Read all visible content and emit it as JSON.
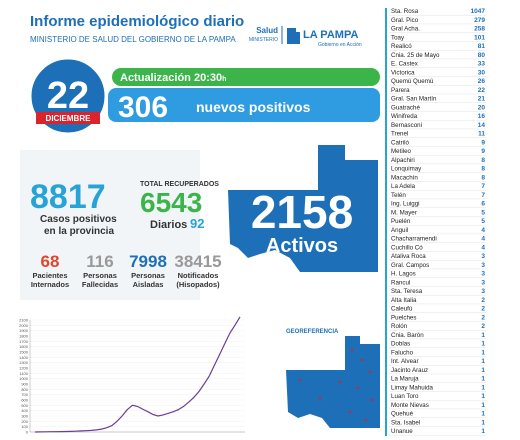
{
  "header": {
    "title": "Informe epidemiológico diario",
    "subtitle": "MINISTERIO DE SALUD DEL GOBIERNO DE LA PAMPA"
  },
  "logo": {
    "salud": "Salud",
    "ministerio": "MINISTERIO",
    "province": "LA PAMPA",
    "slogan": "Gobierno en Acción"
  },
  "date": {
    "day": "22",
    "month": "DICIEMBRE"
  },
  "update": {
    "label": "Actualización 20:30",
    "unit": "h"
  },
  "new_cases": {
    "value": "306",
    "label": "nuevos positivos"
  },
  "total_cases": {
    "value": "8817",
    "label_1": "Casos positivos",
    "label_2": "en la provincia"
  },
  "recovered": {
    "label": "TOTAL RECUPERADOS",
    "value": "6543",
    "daily_label": "Diarios",
    "daily_value": "92"
  },
  "active": {
    "value": "2158",
    "label": "Activos"
  },
  "stats": [
    {
      "value": "68",
      "label_1": "Pacientes",
      "label_2": "Internados"
    },
    {
      "value": "116",
      "label_1": "Personas",
      "label_2": "Fallecidas"
    },
    {
      "value": "7998",
      "label_1": "Personas",
      "label_2": "Aisladas"
    },
    {
      "value": "38415",
      "label_1": "Notificados",
      "label_2": "(Hisopados)"
    }
  ],
  "georef": "GEOREFERENCIA",
  "chart": {
    "yticks": [
      0,
      100,
      200,
      300,
      400,
      500,
      600,
      700,
      800,
      900,
      1000,
      1100,
      1200,
      1300,
      1400,
      1500,
      1600,
      1700,
      1800,
      1900,
      2000,
      2100
    ],
    "values": [
      0,
      2,
      3,
      5,
      5,
      8,
      10,
      12,
      15,
      20,
      25,
      30,
      40,
      55,
      80,
      120,
      200,
      300,
      420,
      500,
      480,
      430,
      380,
      330,
      300,
      320,
      350,
      380,
      420,
      480,
      560,
      650,
      760,
      900,
      1050,
      1250,
      1450,
      1650,
      1850,
      2000,
      2158
    ]
  },
  "localities": [
    [
      "Sta. Rosa",
      "1047"
    ],
    [
      "Gral. Pico",
      "279"
    ],
    [
      "Gral Acha.",
      "258"
    ],
    [
      "Toay",
      "101"
    ],
    [
      "Realicó",
      "81"
    ],
    [
      "Cnia. 25 de Mayo",
      "80"
    ],
    [
      "E. Castex",
      "33"
    ],
    [
      "Victorica",
      "30"
    ],
    [
      "Quemú Quemú",
      "26"
    ],
    [
      "Parera",
      "22"
    ],
    [
      "Gral. San Martín",
      "21"
    ],
    [
      "Guatraché",
      "20"
    ],
    [
      "Winifreda",
      "16"
    ],
    [
      "Bernasconi",
      "14"
    ],
    [
      "Trenel",
      "11"
    ],
    [
      "Catriló",
      "9"
    ],
    [
      "Metileo",
      "9"
    ],
    [
      "Alpachiri",
      "8"
    ],
    [
      "Lonquimay",
      "8"
    ],
    [
      "Macachín",
      "8"
    ],
    [
      "La Adela",
      "7"
    ],
    [
      "Telén",
      "7"
    ],
    [
      "Ing. Luiggi",
      "6"
    ],
    [
      "M. Mayer",
      "5"
    ],
    [
      "Puelén",
      "5"
    ],
    [
      "Anguil",
      "4"
    ],
    [
      "Chacharramendi",
      "4"
    ],
    [
      "Cuchillo Có",
      "4"
    ],
    [
      "Ataliva Roca",
      "3"
    ],
    [
      "Gral. Campos",
      "3"
    ],
    [
      "H. Lagos",
      "3"
    ],
    [
      "Rancul",
      "3"
    ],
    [
      "Sta. Teresa",
      "3"
    ],
    [
      "Alta Italia",
      "2"
    ],
    [
      "Caleufú",
      "2"
    ],
    [
      "Puelches",
      "2"
    ],
    [
      "Rolón",
      "2"
    ],
    [
      "Cnia. Barón",
      "1"
    ],
    [
      "Doblas",
      "1"
    ],
    [
      "Falucho",
      "1"
    ],
    [
      "Int. Alvear",
      "1"
    ],
    [
      "Jacinto Arauz",
      "1"
    ],
    [
      "La Maruja",
      "1"
    ],
    [
      "Limay Mahuida",
      "1"
    ],
    [
      "Luan Toro",
      "1"
    ],
    [
      "Monte Nievas",
      "1"
    ],
    [
      "Quehué",
      "1"
    ],
    [
      "Sta. Isabel",
      "1"
    ],
    [
      "Unanue",
      "1"
    ]
  ]
}
